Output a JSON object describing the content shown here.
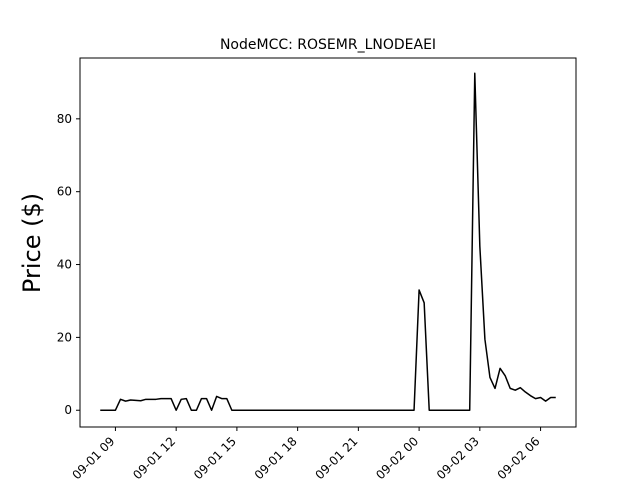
{
  "chart_data": {
    "type": "line",
    "title": "NodeMCC: ROSEMR_LNODEAEI",
    "xlabel": "",
    "ylabel": "Price ($)",
    "xlim": [
      "2018-09-01 07:15",
      "2018-09-02 07:45"
    ],
    "ylim": [
      -4.6,
      96.7
    ],
    "x_ticks": [
      "09-01 09",
      "09-01 12",
      "09-01 15",
      "09-01 18",
      "09-01 21",
      "09-02 00",
      "09-02 03",
      "09-02 06"
    ],
    "y_ticks": [
      0,
      20,
      40,
      60,
      80
    ],
    "grid": false,
    "line_color": "#000000",
    "series": [
      {
        "x": [
          "2018-09-01 08:15",
          "2018-09-01 08:30",
          "2018-09-01 08:45",
          "2018-09-01 09:00",
          "2018-09-01 09:15",
          "2018-09-01 09:30",
          "2018-09-01 09:45",
          "2018-09-01 10:00",
          "2018-09-01 10:15",
          "2018-09-01 10:30",
          "2018-09-01 10:45",
          "2018-09-01 11:00",
          "2018-09-01 11:15",
          "2018-09-01 11:30",
          "2018-09-01 11:45",
          "2018-09-01 12:00",
          "2018-09-01 12:15",
          "2018-09-01 12:30",
          "2018-09-01 12:45",
          "2018-09-01 13:00",
          "2018-09-01 13:15",
          "2018-09-01 13:30",
          "2018-09-01 13:45",
          "2018-09-01 14:00",
          "2018-09-01 14:15",
          "2018-09-01 14:30",
          "2018-09-01 14:45",
          "2018-09-01 15:00",
          "2018-09-01 18:00",
          "2018-09-01 21:00",
          "2018-09-01 23:45",
          "2018-09-02 00:00",
          "2018-09-02 00:15",
          "2018-09-02 00:30",
          "2018-09-02 02:30",
          "2018-09-02 02:45",
          "2018-09-02 03:00",
          "2018-09-02 03:15",
          "2018-09-02 03:30",
          "2018-09-02 03:45",
          "2018-09-02 04:00",
          "2018-09-02 04:15",
          "2018-09-02 04:30",
          "2018-09-02 04:45",
          "2018-09-02 05:00",
          "2018-09-02 05:15",
          "2018-09-02 05:30",
          "2018-09-02 05:45",
          "2018-09-02 06:00",
          "2018-09-02 06:15",
          "2018-09-02 06:30",
          "2018-09-02 06:45"
        ],
        "y": [
          0,
          0,
          0,
          0,
          3,
          2.5,
          2.8,
          2.7,
          2.6,
          3,
          3,
          3,
          3.2,
          3.2,
          3.2,
          0,
          3,
          3.2,
          0,
          0,
          3.2,
          3.2,
          0,
          3.8,
          3.2,
          3.2,
          0,
          0,
          0,
          0,
          0,
          33,
          29.5,
          0,
          0,
          92.5,
          45,
          19.5,
          9,
          6,
          11.5,
          9.5,
          6,
          5.5,
          6.2,
          5,
          4,
          3.2,
          3.5,
          2.5,
          3.5,
          3.5
        ]
      }
    ]
  }
}
